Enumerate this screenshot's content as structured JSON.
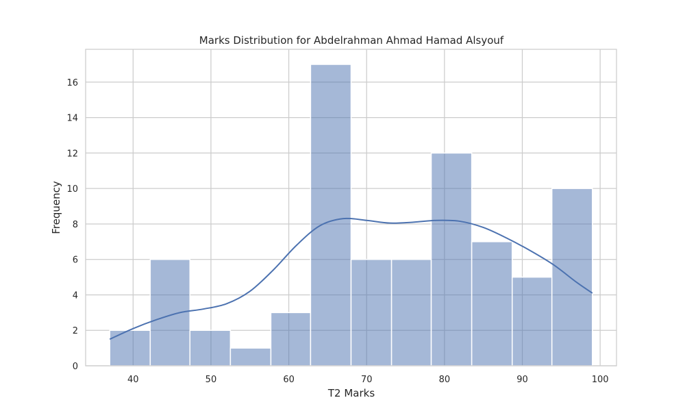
{
  "chart_data": {
    "type": "histogram",
    "title": "Marks Distribution for Abdelrahman Ahmad Hamad Alsyouf",
    "xlabel": "T2 Marks",
    "ylabel": "Frequency",
    "xlim": [
      33.9,
      102.1
    ],
    "ylim": [
      0,
      17.85
    ],
    "xticks": [
      40,
      50,
      60,
      70,
      80,
      90,
      100
    ],
    "yticks": [
      0,
      2,
      4,
      6,
      8,
      10,
      12,
      14,
      16
    ],
    "grid": true,
    "bins": [
      {
        "start": 37.0,
        "end": 42.2,
        "count": 2
      },
      {
        "start": 42.2,
        "end": 47.3,
        "count": 6
      },
      {
        "start": 47.3,
        "end": 52.5,
        "count": 2
      },
      {
        "start": 52.5,
        "end": 57.7,
        "count": 1
      },
      {
        "start": 57.7,
        "end": 62.8,
        "count": 3
      },
      {
        "start": 62.8,
        "end": 68.0,
        "count": 17
      },
      {
        "start": 68.0,
        "end": 73.2,
        "count": 6
      },
      {
        "start": 73.2,
        "end": 78.3,
        "count": 6
      },
      {
        "start": 78.3,
        "end": 83.5,
        "count": 12
      },
      {
        "start": 83.5,
        "end": 88.7,
        "count": 7
      },
      {
        "start": 88.7,
        "end": 93.8,
        "count": 5
      },
      {
        "start": 93.8,
        "end": 99.0,
        "count": 10
      }
    ],
    "kde": {
      "x": [
        37,
        40,
        43,
        46,
        49,
        52,
        55,
        58,
        61,
        64,
        67,
        70,
        73,
        76,
        79,
        82,
        85,
        88,
        91,
        94,
        97,
        99
      ],
      "y": [
        1.5,
        2.1,
        2.6,
        3.0,
        3.2,
        3.5,
        4.2,
        5.4,
        6.8,
        7.9,
        8.3,
        8.2,
        8.05,
        8.1,
        8.2,
        8.15,
        7.8,
        7.2,
        6.5,
        5.7,
        4.7,
        4.1
      ]
    },
    "colors": {
      "bar_fill": "#4c72b0",
      "bar_opacity": 0.5,
      "bar_edge": "#ffffff",
      "kde_line": "#4c72b0",
      "grid": "#cccccc",
      "frame": "#cccccc",
      "text": "#262626"
    }
  }
}
